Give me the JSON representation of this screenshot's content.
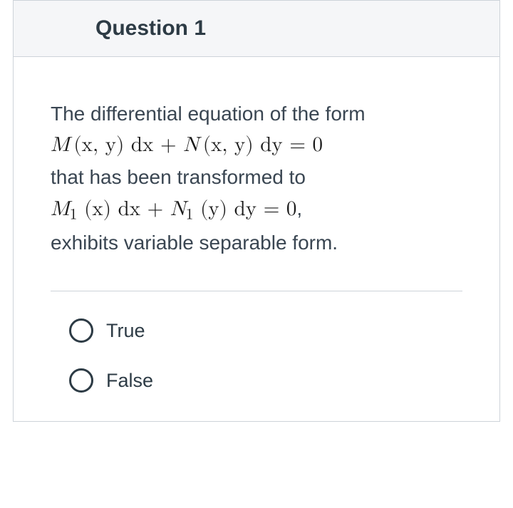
{
  "question": {
    "title": "Question 1",
    "stem_line1": "The differential equation of the form",
    "eq1_part1": "M",
    "eq1_part2": "(x, y) dx ",
    "eq1_part3": " + ",
    "eq1_part4": "N",
    "eq1_part5": "(x, y) dy  = 0",
    "stem_line2": "that has been  transformed to",
    "eq2_M": "M",
    "eq2_sub1": "1",
    "eq2_part2": " (x) dx + ",
    "eq2_N": "N",
    "eq2_sub2": "1",
    "eq2_part4": " (y) dy  = 0",
    "eq2_comma": ",",
    "stem_line3": "exhibits variable separable form."
  },
  "options": [
    {
      "label": "True"
    },
    {
      "label": "False"
    }
  ],
  "colors": {
    "border": "#cdd3d9",
    "header_bg": "#f5f6f8",
    "title_text": "#2d3b45",
    "body_text": "#3a4652",
    "eq_text": "#1b1b1b",
    "radio_border": "#2d3b45",
    "background": "#ffffff"
  },
  "typography": {
    "title_fontsize": 30,
    "title_weight": 700,
    "body_fontsize": 28,
    "eq_fontsize": 29,
    "option_fontsize": 27
  }
}
